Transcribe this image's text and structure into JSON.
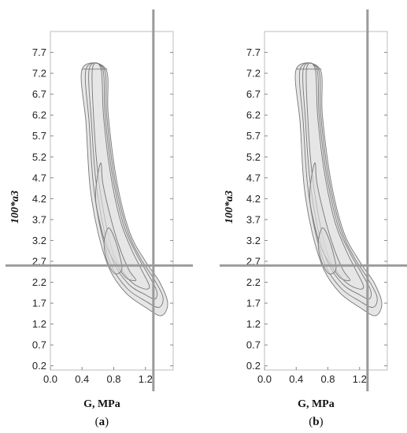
{
  "chart_data": [
    {
      "type": "contour",
      "panel_label": "a",
      "xlabel": "G, MPa",
      "ylabel": "100*a3",
      "xlim": [
        0.0,
        1.55
      ],
      "ylim": [
        0.1,
        8.2
      ],
      "x_ticks": [
        "0.0",
        "0.4",
        "0.8",
        "1.2"
      ],
      "y_ticks": [
        "0.2",
        "0.7",
        "1.2",
        "1.7",
        "2.2",
        "2.7",
        "3.2",
        "3.7",
        "4.2",
        "4.7",
        "5.2",
        "5.7",
        "6.2",
        "6.7",
        "7.2",
        "7.7"
      ],
      "crosshair": {
        "x": 1.3,
        "y": 2.6,
        "color": "#9a9a9a"
      },
      "contour_color": "#777777",
      "fill_color": "#e6e6e6",
      "contours": [
        {
          "level": 1,
          "points": [
            [
              0.4,
              7.3
            ],
            [
              0.45,
              6.0
            ],
            [
              0.5,
              4.5
            ],
            [
              0.6,
              3.4
            ],
            [
              0.75,
              2.5
            ],
            [
              0.95,
              1.95
            ],
            [
              1.2,
              1.6
            ],
            [
              1.4,
              1.4
            ],
            [
              1.48,
              1.7
            ],
            [
              1.38,
              2.2
            ],
            [
              1.2,
              2.7
            ],
            [
              1.0,
              3.4
            ],
            [
              0.84,
              4.6
            ],
            [
              0.73,
              6.2
            ],
            [
              0.7,
              7.3
            ]
          ]
        },
        {
          "level": 2,
          "points": [
            [
              0.45,
              7.3
            ],
            [
              0.49,
              6.0
            ],
            [
              0.54,
              4.6
            ],
            [
              0.63,
              3.5
            ],
            [
              0.77,
              2.6
            ],
            [
              0.97,
              2.05
            ],
            [
              1.2,
              1.75
            ],
            [
              1.37,
              1.6
            ],
            [
              1.42,
              1.85
            ],
            [
              1.3,
              2.3
            ],
            [
              1.13,
              2.8
            ],
            [
              0.96,
              3.5
            ],
            [
              0.81,
              4.7
            ],
            [
              0.71,
              6.2
            ],
            [
              0.68,
              7.3
            ]
          ]
        },
        {
          "level": 3,
          "points": [
            [
              0.49,
              7.3
            ],
            [
              0.52,
              6.0
            ],
            [
              0.57,
              4.7
            ],
            [
              0.66,
              3.6
            ],
            [
              0.79,
              2.7
            ],
            [
              0.99,
              2.15
            ],
            [
              1.2,
              1.9
            ],
            [
              1.32,
              1.8
            ],
            [
              1.34,
              2.0
            ],
            [
              1.23,
              2.4
            ],
            [
              1.08,
              2.9
            ],
            [
              0.92,
              3.6
            ],
            [
              0.78,
              4.8
            ],
            [
              0.69,
              6.2
            ],
            [
              0.66,
              7.3
            ]
          ]
        },
        {
          "level": 4,
          "points": [
            [
              0.53,
              7.3
            ],
            [
              0.55,
              6.0
            ],
            [
              0.6,
              4.8
            ],
            [
              0.69,
              3.7
            ],
            [
              0.81,
              2.8
            ],
            [
              1.0,
              2.25
            ],
            [
              1.17,
              2.05
            ],
            [
              1.25,
              2.1
            ],
            [
              1.15,
              2.5
            ],
            [
              1.02,
              3.0
            ],
            [
              0.88,
              3.7
            ],
            [
              0.75,
              4.9
            ],
            [
              0.67,
              6.2
            ],
            [
              0.64,
              7.3
            ]
          ]
        },
        {
          "level": 5,
          "points": [
            [
              0.57,
              4.2
            ],
            [
              0.6,
              4.8
            ],
            [
              0.64,
              5.05
            ],
            [
              0.66,
              4.6
            ],
            [
              0.74,
              3.9
            ],
            [
              0.86,
              3.1
            ],
            [
              0.99,
              2.5
            ],
            [
              1.08,
              2.25
            ],
            [
              0.96,
              2.3
            ],
            [
              0.84,
              2.6
            ],
            [
              0.72,
              3.0
            ],
            [
              0.64,
              3.5
            ]
          ]
        },
        {
          "level": 6,
          "points": [
            [
              0.68,
              3.2
            ],
            [
              0.73,
              3.5
            ],
            [
              0.8,
              3.3
            ],
            [
              0.88,
              2.8
            ],
            [
              0.9,
              2.5
            ],
            [
              0.82,
              2.4
            ],
            [
              0.74,
              2.6
            ],
            [
              0.69,
              2.9
            ]
          ]
        }
      ]
    },
    {
      "type": "contour",
      "panel_label": "b",
      "xlabel": "G, MPa",
      "ylabel": "100*a3",
      "xlim": [
        0.0,
        1.55
      ],
      "ylim": [
        0.1,
        8.2
      ],
      "x_ticks": [
        "0.0",
        "0.4",
        "0.8",
        "1.2"
      ],
      "y_ticks": [
        "0.2",
        "0.7",
        "1.2",
        "1.7",
        "2.2",
        "2.7",
        "3.2",
        "3.7",
        "4.2",
        "4.7",
        "5.2",
        "5.7",
        "6.2",
        "6.7",
        "7.2",
        "7.7"
      ],
      "crosshair": {
        "x": 1.3,
        "y": 2.6,
        "color": "#9a9a9a"
      },
      "contour_color": "#777777",
      "fill_color": "#e6e6e6",
      "contours": [
        {
          "level": 1,
          "points": [
            [
              0.4,
              7.3
            ],
            [
              0.45,
              6.0
            ],
            [
              0.5,
              4.5
            ],
            [
              0.6,
              3.4
            ],
            [
              0.75,
              2.5
            ],
            [
              0.95,
              1.95
            ],
            [
              1.2,
              1.6
            ],
            [
              1.4,
              1.4
            ],
            [
              1.48,
              1.7
            ],
            [
              1.38,
              2.2
            ],
            [
              1.2,
              2.7
            ],
            [
              1.0,
              3.4
            ],
            [
              0.84,
              4.6
            ],
            [
              0.73,
              6.2
            ],
            [
              0.7,
              7.3
            ]
          ]
        },
        {
          "level": 2,
          "points": [
            [
              0.45,
              7.3
            ],
            [
              0.49,
              6.0
            ],
            [
              0.54,
              4.6
            ],
            [
              0.63,
              3.5
            ],
            [
              0.77,
              2.6
            ],
            [
              0.97,
              2.05
            ],
            [
              1.2,
              1.75
            ],
            [
              1.37,
              1.6
            ],
            [
              1.42,
              1.85
            ],
            [
              1.3,
              2.3
            ],
            [
              1.13,
              2.8
            ],
            [
              0.96,
              3.5
            ],
            [
              0.81,
              4.7
            ],
            [
              0.71,
              6.2
            ],
            [
              0.68,
              7.3
            ]
          ]
        },
        {
          "level": 3,
          "points": [
            [
              0.49,
              7.3
            ],
            [
              0.52,
              6.0
            ],
            [
              0.57,
              4.7
            ],
            [
              0.66,
              3.6
            ],
            [
              0.79,
              2.7
            ],
            [
              0.99,
              2.15
            ],
            [
              1.2,
              1.9
            ],
            [
              1.32,
              1.8
            ],
            [
              1.34,
              2.0
            ],
            [
              1.23,
              2.4
            ],
            [
              1.08,
              2.9
            ],
            [
              0.92,
              3.6
            ],
            [
              0.78,
              4.8
            ],
            [
              0.69,
              6.2
            ],
            [
              0.66,
              7.3
            ]
          ]
        },
        {
          "level": 4,
          "points": [
            [
              0.53,
              7.3
            ],
            [
              0.55,
              6.0
            ],
            [
              0.6,
              4.8
            ],
            [
              0.69,
              3.7
            ],
            [
              0.81,
              2.8
            ],
            [
              1.0,
              2.25
            ],
            [
              1.17,
              2.05
            ],
            [
              1.25,
              2.1
            ],
            [
              1.15,
              2.5
            ],
            [
              1.02,
              3.0
            ],
            [
              0.88,
              3.7
            ],
            [
              0.75,
              4.9
            ],
            [
              0.67,
              6.2
            ],
            [
              0.64,
              7.3
            ]
          ]
        },
        {
          "level": 5,
          "points": [
            [
              0.57,
              4.2
            ],
            [
              0.6,
              4.8
            ],
            [
              0.64,
              5.05
            ],
            [
              0.66,
              4.6
            ],
            [
              0.74,
              3.9
            ],
            [
              0.86,
              3.1
            ],
            [
              0.99,
              2.5
            ],
            [
              1.08,
              2.25
            ],
            [
              0.96,
              2.3
            ],
            [
              0.84,
              2.6
            ],
            [
              0.72,
              3.0
            ],
            [
              0.64,
              3.5
            ]
          ]
        },
        {
          "level": 6,
          "points": [
            [
              0.68,
              3.2
            ],
            [
              0.73,
              3.5
            ],
            [
              0.8,
              3.3
            ],
            [
              0.88,
              2.8
            ],
            [
              0.9,
              2.5
            ],
            [
              0.82,
              2.4
            ],
            [
              0.74,
              2.6
            ],
            [
              0.69,
              2.9
            ]
          ]
        }
      ]
    }
  ]
}
